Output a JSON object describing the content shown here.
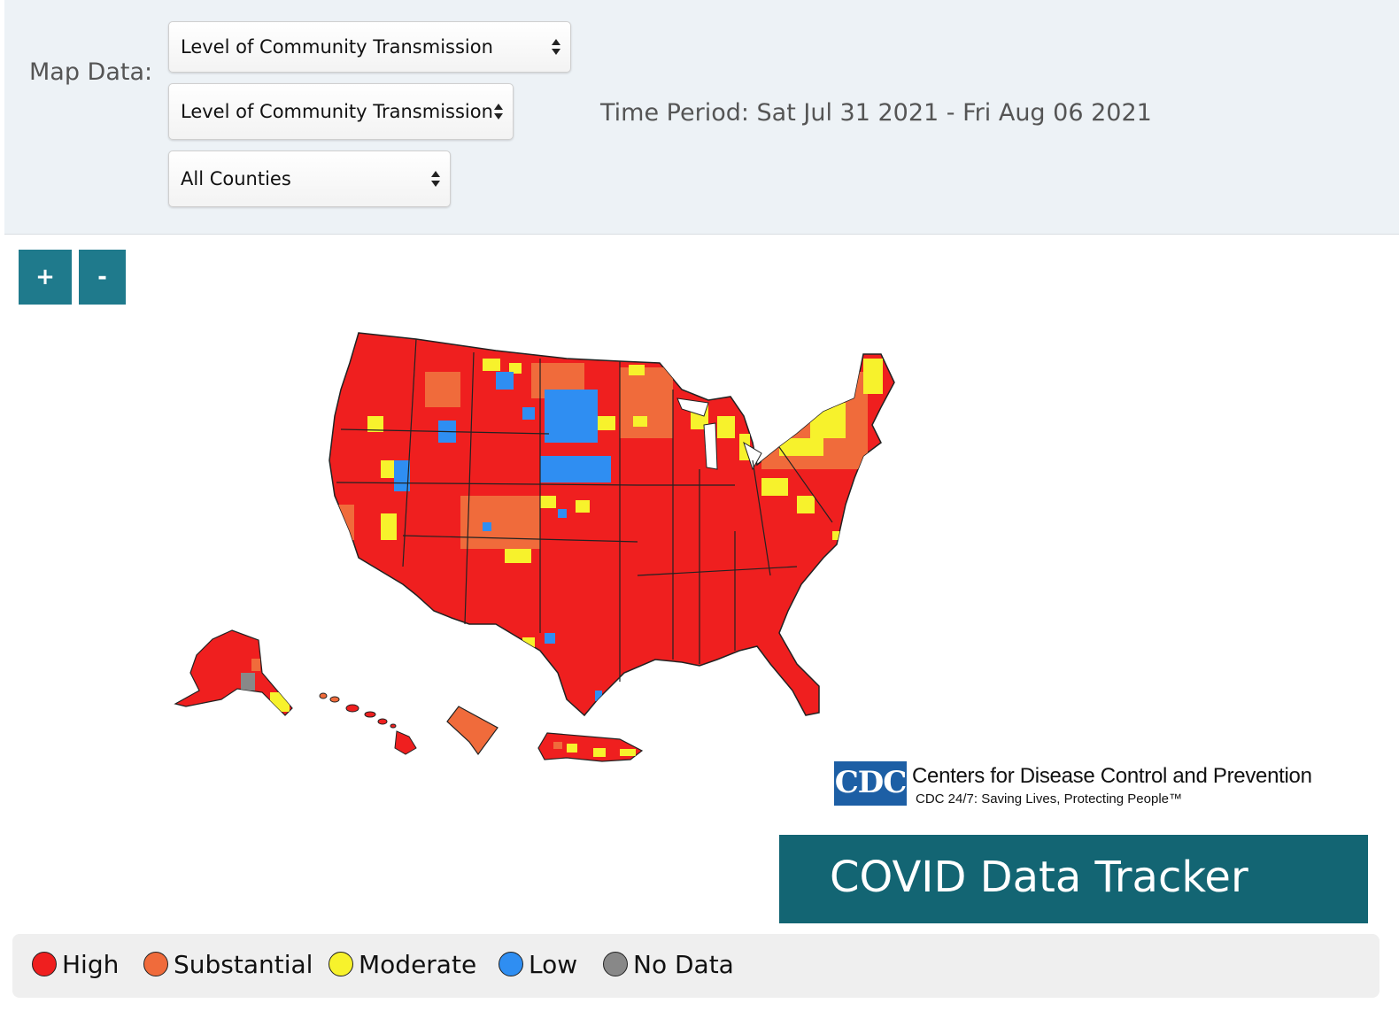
{
  "header": {
    "map_data_label": "Map Data:",
    "select_metric": "Level of Community Transmission",
    "select_submetric": "Level of Community Transmission",
    "select_scope": "All Counties",
    "time_period": "Time Period: Sat Jul 31 2021 - Fri Aug 06 2021"
  },
  "zoom": {
    "in_label": "+",
    "out_label": "-"
  },
  "colors": {
    "high": "#ef1f1f",
    "substantial": "#f06b3b",
    "moderate": "#f7f22c",
    "low": "#2f8ef2",
    "no_data": "#888888",
    "accent": "#1f7a8c",
    "banner": "#136573"
  },
  "branding": {
    "cdc_abbrev": "CDC",
    "cdc_name": "Centers for Disease Control and Prevention",
    "cdc_tagline": "CDC 24/7: Saving Lives, Protecting People™",
    "tracker_title": "COVID Data Tracker"
  },
  "legend": [
    {
      "key": "high",
      "label": "High"
    },
    {
      "key": "substantial",
      "label": "Substantial"
    },
    {
      "key": "moderate",
      "label": "Moderate"
    },
    {
      "key": "low",
      "label": "Low"
    },
    {
      "key": "no_data",
      "label": "No Data"
    }
  ]
}
